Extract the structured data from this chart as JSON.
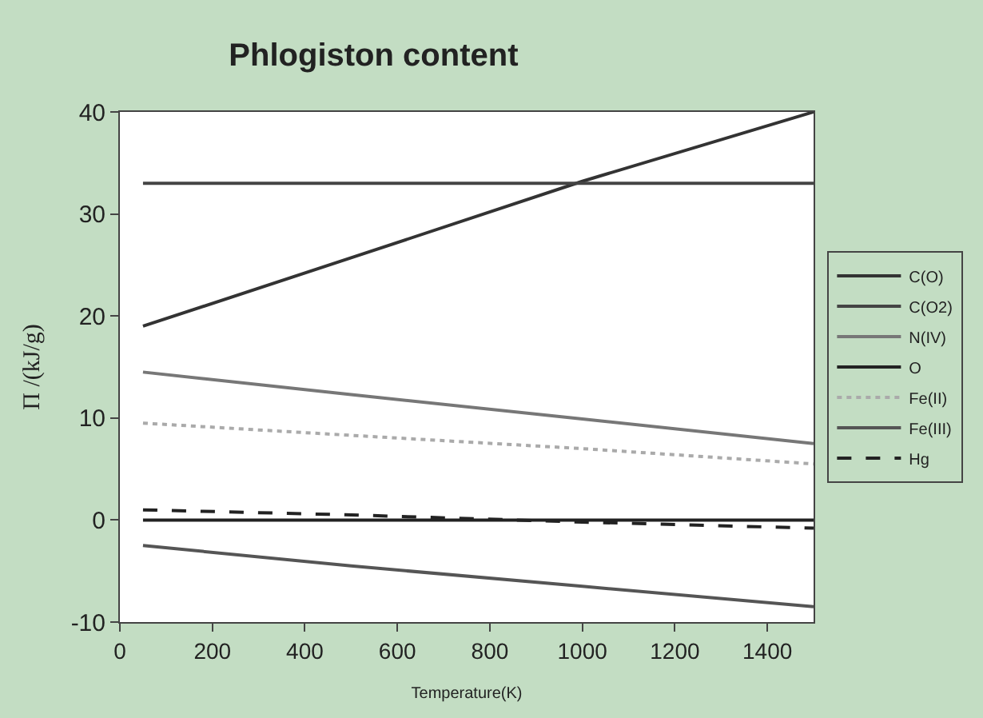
{
  "chart_data": {
    "type": "line",
    "title": "Phlogiston content",
    "xlabel": "Temperature(K)",
    "ylabel": "Π /(kJ/g)",
    "x": [
      50,
      500,
      1000,
      1500
    ],
    "series": [
      {
        "name": "C(O)",
        "color": "#333333",
        "values": [
          19,
          25.7,
          33.2,
          40
        ]
      },
      {
        "name": "C(O2)",
        "color": "#444444",
        "values": [
          33,
          33,
          33,
          33
        ]
      },
      {
        "name": "N(IV)",
        "color": "#777777",
        "values": [
          14.5,
          12.3,
          9.9,
          7.5
        ]
      },
      {
        "name": "O",
        "color": "#222222",
        "values": [
          0,
          0,
          0,
          0
        ]
      },
      {
        "name": "Fe(II)",
        "color": "#aaaaaa",
        "line_style": "dotted",
        "values": [
          9.5,
          8.3,
          7,
          5.5
        ]
      },
      {
        "name": "Fe(III)",
        "color": "#555555",
        "values": [
          -2.5,
          -4.5,
          -6.5,
          -8.5
        ]
      },
      {
        "name": "Hg",
        "color": "#222222",
        "line_style": "dashed",
        "values": [
          1,
          0.5,
          -0.2,
          -0.8
        ]
      }
    ],
    "xlim": [
      0,
      1500
    ],
    "xticks": [
      0,
      200,
      400,
      600,
      800,
      1000,
      1200,
      1400
    ],
    "ylim": [
      -10,
      40
    ],
    "yticks": [
      -10,
      0,
      10,
      20,
      30,
      40
    ],
    "legend": "right",
    "marker": "none"
  }
}
